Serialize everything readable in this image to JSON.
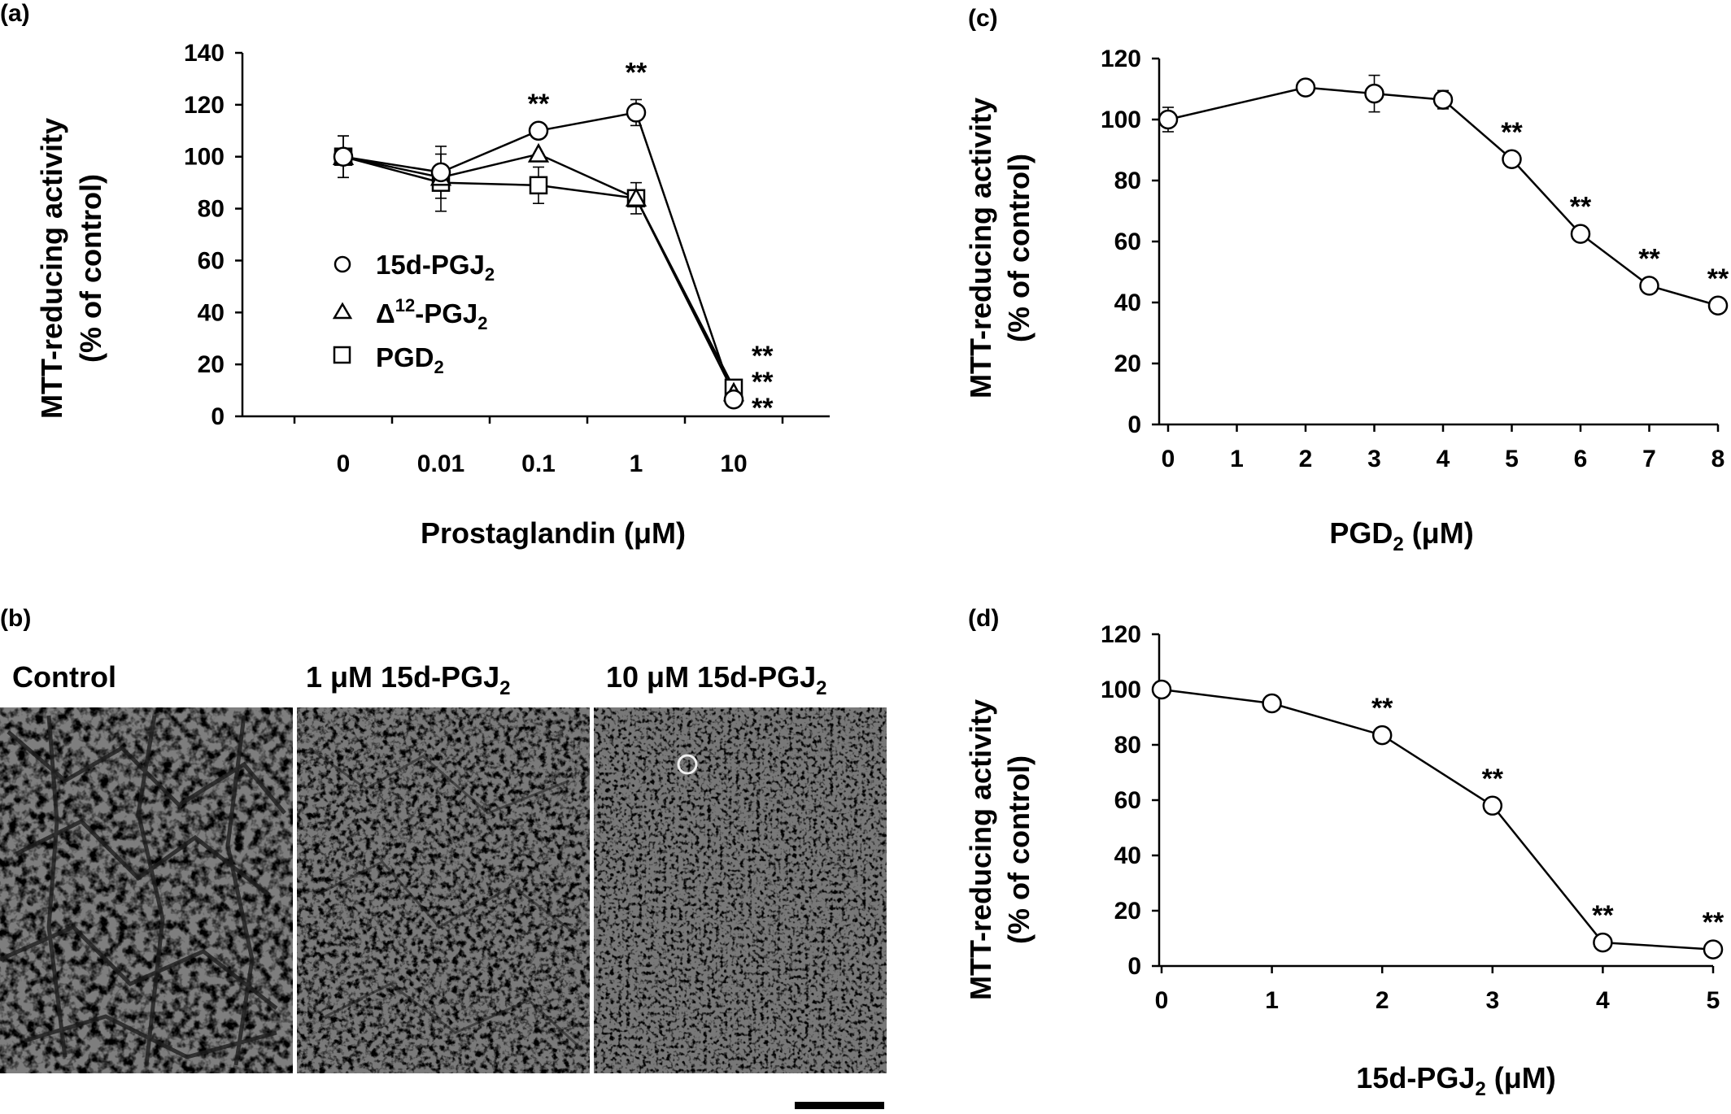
{
  "colors": {
    "axis": "#000000",
    "marker_fill": "#ffffff",
    "micrograph_bg": "#7a7a7a",
    "scale_bar": "#000000"
  },
  "chart_data": [
    {
      "panel": "(a)",
      "type": "line",
      "x_scale": "categorical",
      "categories": [
        "0",
        "0.01",
        "0.1",
        "1",
        "10"
      ],
      "xlabel": "Prostaglandin (μM)",
      "ylabel": [
        "MTT-reducing activity",
        "(% of control)"
      ],
      "ylim": [
        0,
        140
      ],
      "yticks": [
        0,
        20,
        40,
        60,
        80,
        100,
        120,
        140
      ],
      "ytick_labels": [
        "0",
        "20",
        "40",
        "60",
        "80",
        "100",
        "120",
        "140"
      ],
      "grid": false,
      "legend_position": "center-left",
      "series": [
        {
          "name": "15d-PGJ",
          "name_sub": "2",
          "name_sup": "",
          "marker": "circle",
          "values": [
            100,
            94,
            110,
            117,
            6.5
          ],
          "errors": [
            8,
            10,
            0,
            5,
            0
          ],
          "significance": [
            "",
            "",
            "**",
            "**",
            "**"
          ]
        },
        {
          "name": "Δ",
          "name_sup": "12",
          "name_rest": "-PGJ",
          "name_sub": "2",
          "marker": "triangle",
          "values": [
            100,
            92,
            101,
            84,
            9
          ],
          "errors": [
            0,
            0,
            0,
            0,
            0
          ],
          "significance": [
            "",
            "",
            "",
            "",
            "**"
          ]
        },
        {
          "name": "PGD",
          "name_sub": "2",
          "name_sup": "",
          "marker": "square",
          "values": [
            100,
            90,
            89,
            84,
            11
          ],
          "errors": [
            8,
            11,
            7,
            6,
            0
          ],
          "significance": [
            "",
            "",
            "",
            "",
            "**"
          ]
        }
      ]
    },
    {
      "panel": "(c)",
      "type": "line",
      "x": [
        0,
        2,
        3,
        4,
        5,
        6,
        7,
        8
      ],
      "xlim": [
        0,
        8
      ],
      "xticks": [
        0,
        1,
        2,
        3,
        4,
        5,
        6,
        7,
        8
      ],
      "xlabel": "PGD",
      "xlabel_sub": "2",
      "xlabel_rest": " (μM)",
      "ylabel": [
        "MTT-reducing activity",
        "(% of control)"
      ],
      "ylim": [
        0,
        120
      ],
      "yticks": [
        0,
        20,
        40,
        60,
        80,
        100,
        120
      ],
      "grid": false,
      "series": [
        {
          "name": "",
          "marker": "circle",
          "values": [
            100,
            110.5,
            108.5,
            106.5,
            87,
            62.5,
            45.5,
            39
          ],
          "errors": [
            4,
            0,
            6,
            3,
            0,
            0,
            0,
            0
          ],
          "significance": [
            "",
            "",
            "",
            "",
            "**",
            "**",
            "**",
            "**"
          ]
        }
      ]
    },
    {
      "panel": "(d)",
      "type": "line",
      "x": [
        0,
        1,
        2,
        3,
        4,
        5
      ],
      "xlim": [
        0,
        5
      ],
      "xticks": [
        0,
        1,
        2,
        3,
        4,
        5
      ],
      "xlabel": "15d-PGJ",
      "xlabel_sub": "2",
      "xlabel_rest": " (μM)",
      "ylabel": [
        "MTT-reducing activity",
        "(% of control)"
      ],
      "ylim": [
        0,
        120
      ],
      "yticks": [
        0,
        20,
        40,
        60,
        80,
        100,
        120
      ],
      "grid": false,
      "series": [
        {
          "name": "",
          "marker": "circle",
          "values": [
            100,
            95,
            83.5,
            58,
            8.5,
            6
          ],
          "errors": [
            0,
            0,
            0,
            0,
            0,
            0
          ],
          "significance": [
            "",
            "",
            "**",
            "**",
            "**",
            "**"
          ]
        }
      ]
    }
  ],
  "panel_b": {
    "label": "(b)",
    "images": [
      {
        "label": "Control",
        "label_sub": ""
      },
      {
        "label": "1 μM 15d-PGJ",
        "label_sub": "2"
      },
      {
        "label": "10 μM 15d-PGJ",
        "label_sub": "2"
      }
    ]
  }
}
